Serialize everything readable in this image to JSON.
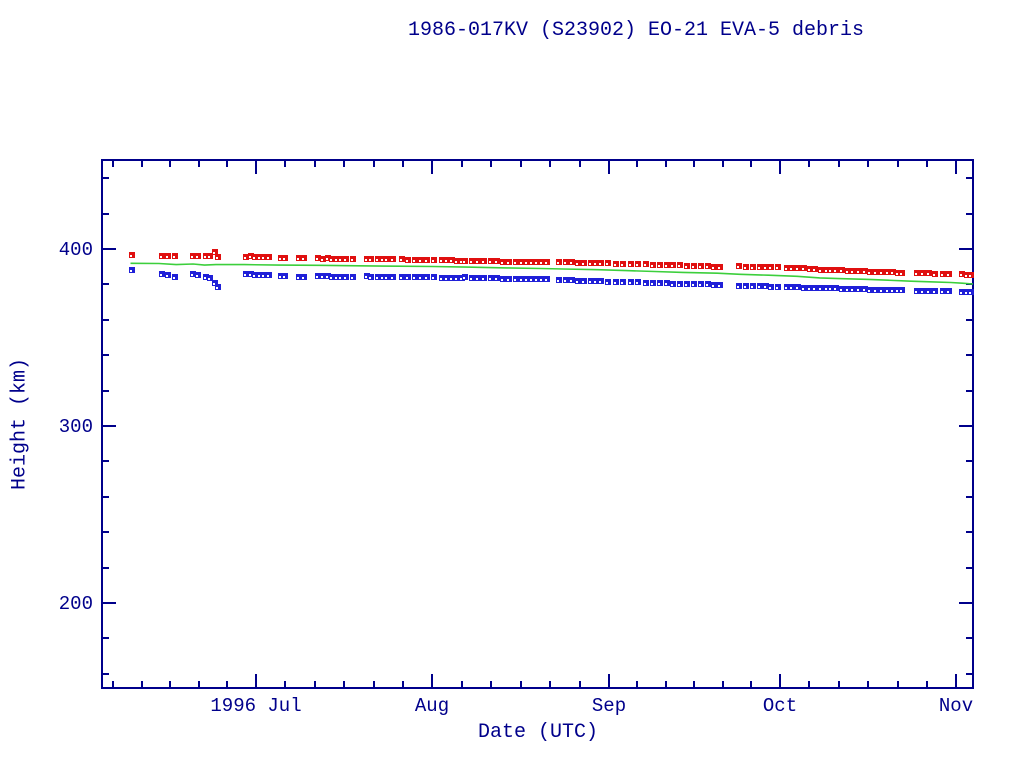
{
  "page": {
    "background": "#ffffff"
  },
  "title": "1986-017KV (S23902) EO-21 EVA-5 debris",
  "colors": {
    "axis_and_text": "#00008b",
    "red_series": "#e01010",
    "blue_series": "#2020d8",
    "green_line": "#3ccf3c",
    "marker_notch": "#ffffff"
  },
  "chart_data": {
    "type": "scatter",
    "title": "1986-017KV (S23902) EO-21 EVA-5 debris",
    "xlabel": "Date (UTC)",
    "ylabel": "Height (km)",
    "x_unit_note": "days since 1996-06-01",
    "xlim": [
      3.0,
      155.9
    ],
    "ylim": [
      152,
      450
    ],
    "grid": "off",
    "legend": "none",
    "y_major_ticks": [
      {
        "value": 200,
        "label": "200"
      },
      {
        "value": 300,
        "label": "300"
      },
      {
        "value": 400,
        "label": "400"
      }
    ],
    "y_minor_step": 20,
    "x_major_ticks": [
      {
        "day": 30,
        "label": "1996 Jul"
      },
      {
        "day": 61,
        "label": "Aug"
      },
      {
        "day": 92,
        "label": "Sep"
      },
      {
        "day": 122,
        "label": "Oct"
      },
      {
        "day": 153,
        "label": "Nov"
      }
    ],
    "x_month_boundaries": [
      0,
      30,
      61,
      92,
      122,
      153,
      184
    ],
    "x_minor_divisions_per_month": 6,
    "series": [
      {
        "name": "red-squares",
        "marker": "square",
        "color": "#e01010"
      },
      {
        "name": "blue-squares",
        "marker": "square",
        "color": "#2020d8"
      },
      {
        "name": "green-line",
        "type": "line",
        "color": "#3ccf3c"
      }
    ],
    "observations_day_redkm_bluekm": [
      [
        8.2,
        396.6,
        388.0
      ],
      [
        13.5,
        396.2,
        385.8
      ],
      [
        14.6,
        396.2,
        385.3
      ],
      [
        15.8,
        395.8,
        384.3
      ],
      [
        19.0,
        396.2,
        385.6
      ],
      [
        19.8,
        396.1,
        385.5
      ],
      [
        21.2,
        395.9,
        383.9
      ],
      [
        22.0,
        395.9,
        383.7
      ],
      [
        22.8,
        398.1,
        380.7
      ],
      [
        23.4,
        395.7,
        378.3
      ],
      [
        28.3,
        395.7,
        385.6
      ],
      [
        29.1,
        395.8,
        385.7
      ],
      [
        29.9,
        395.6,
        385.5
      ],
      [
        30.7,
        395.6,
        385.4
      ],
      [
        31.5,
        395.4,
        385.3
      ],
      [
        32.3,
        395.5,
        385.3
      ],
      [
        34.4,
        394.9,
        384.7
      ],
      [
        35.2,
        394.9,
        384.6
      ],
      [
        37.6,
        395.1,
        384.3
      ],
      [
        38.4,
        395.0,
        384.2
      ],
      [
        41.0,
        394.7,
        384.5
      ],
      [
        41.8,
        394.6,
        384.6
      ],
      [
        42.6,
        394.7,
        384.5
      ],
      [
        43.4,
        394.5,
        384.4
      ],
      [
        44.2,
        394.5,
        384.3
      ],
      [
        45.0,
        394.4,
        384.3
      ],
      [
        45.9,
        394.3,
        384.2
      ],
      [
        47.0,
        394.3,
        384.1
      ],
      [
        49.5,
        394.5,
        384.5
      ],
      [
        50.3,
        394.4,
        384.4
      ],
      [
        51.5,
        394.3,
        384.3
      ],
      [
        52.3,
        394.2,
        384.2
      ],
      [
        53.1,
        394.3,
        384.2
      ],
      [
        54.0,
        394.1,
        384.1
      ],
      [
        55.7,
        394.1,
        384.3
      ],
      [
        56.8,
        394.0,
        384.2
      ],
      [
        57.9,
        393.9,
        384.1
      ],
      [
        59.0,
        393.8,
        384.0
      ],
      [
        60.1,
        393.8,
        383.9
      ],
      [
        61.2,
        393.7,
        383.9
      ],
      [
        62.7,
        393.7,
        383.7
      ],
      [
        63.6,
        393.6,
        383.7
      ],
      [
        64.5,
        393.6,
        383.6
      ],
      [
        65.4,
        393.5,
        383.6
      ],
      [
        66.2,
        393.5,
        383.5
      ],
      [
        66.8,
        393.5,
        383.9
      ],
      [
        67.9,
        393.4,
        383.8
      ],
      [
        69.0,
        393.3,
        383.7
      ],
      [
        70.1,
        393.2,
        383.6
      ],
      [
        71.2,
        393.1,
        383.5
      ],
      [
        72.3,
        393.0,
        383.4
      ],
      [
        73.4,
        392.9,
        383.3
      ],
      [
        74.5,
        392.9,
        383.2
      ],
      [
        75.6,
        392.8,
        383.2
      ],
      [
        76.7,
        392.8,
        383.1
      ],
      [
        77.6,
        392.7,
        383.1
      ],
      [
        78.5,
        392.7,
        383.0
      ],
      [
        79.3,
        392.9,
        382.9
      ],
      [
        80.2,
        392.8,
        382.8
      ],
      [
        81.1,
        392.7,
        382.8
      ],
      [
        83.3,
        392.6,
        382.5
      ],
      [
        84.4,
        392.5,
        382.4
      ],
      [
        85.5,
        392.4,
        382.3
      ],
      [
        86.6,
        392.3,
        382.2
      ],
      [
        87.7,
        392.2,
        382.1
      ],
      [
        88.8,
        392.1,
        382.0
      ],
      [
        89.8,
        392.1,
        381.9
      ],
      [
        90.6,
        392.0,
        381.7
      ],
      [
        91.9,
        391.9,
        381.6
      ],
      [
        93.2,
        391.8,
        381.5
      ],
      [
        94.5,
        391.7,
        381.4
      ],
      [
        95.8,
        391.6,
        381.2
      ],
      [
        97.1,
        391.5,
        381.1
      ],
      [
        98.5,
        391.3,
        380.9
      ],
      [
        99.7,
        391.2,
        380.8
      ],
      [
        100.9,
        391.0,
        380.7
      ],
      [
        102.1,
        390.9,
        380.6
      ],
      [
        103.3,
        390.8,
        380.5
      ],
      [
        104.5,
        390.7,
        380.4
      ],
      [
        105.7,
        390.5,
        380.3
      ],
      [
        106.9,
        390.4,
        380.2
      ],
      [
        108.1,
        390.3,
        380.1
      ],
      [
        109.3,
        390.2,
        380.0
      ],
      [
        110.4,
        390.1,
        379.9
      ],
      [
        111.4,
        390.0,
        379.9
      ],
      [
        114.9,
        390.3,
        379.3
      ],
      [
        116.1,
        390.1,
        379.2
      ],
      [
        117.3,
        390.0,
        379.1
      ],
      [
        118.5,
        389.9,
        379.0
      ],
      [
        119.6,
        389.9,
        378.9
      ],
      [
        120.4,
        389.7,
        378.7
      ],
      [
        121.6,
        389.6,
        378.6
      ],
      [
        123.2,
        389.3,
        378.5
      ],
      [
        124.2,
        389.2,
        378.4
      ],
      [
        125.2,
        389.1,
        378.3
      ],
      [
        126.2,
        389.0,
        378.2
      ],
      [
        127.2,
        388.8,
        378.1
      ],
      [
        128.2,
        388.6,
        378.0
      ],
      [
        129.2,
        388.4,
        377.9
      ],
      [
        130.2,
        388.3,
        377.8
      ],
      [
        130.9,
        388.2,
        377.7
      ],
      [
        131.9,
        388.1,
        377.7
      ],
      [
        132.9,
        387.9,
        377.6
      ],
      [
        133.9,
        387.8,
        377.5
      ],
      [
        134.9,
        387.6,
        377.4
      ],
      [
        135.9,
        387.5,
        377.3
      ],
      [
        136.9,
        387.4,
        377.2
      ],
      [
        137.9,
        387.2,
        377.1
      ],
      [
        138.9,
        387.1,
        377.0
      ],
      [
        139.9,
        387.0,
        376.9
      ],
      [
        140.9,
        386.9,
        376.9
      ],
      [
        141.9,
        386.8,
        376.8
      ],
      [
        142.7,
        386.7,
        376.7
      ],
      [
        143.5,
        386.7,
        376.7
      ],
      [
        146.0,
        386.5,
        376.5
      ],
      [
        147.1,
        386.4,
        376.4
      ],
      [
        148.2,
        386.2,
        376.4
      ],
      [
        149.3,
        386.1,
        376.3
      ],
      [
        150.6,
        386.0,
        376.2
      ],
      [
        151.7,
        385.9,
        376.1
      ],
      [
        153.9,
        385.7,
        375.9
      ],
      [
        154.8,
        385.5,
        375.7
      ],
      [
        155.6,
        385.3,
        375.6
      ]
    ],
    "green_line_day_km": [
      [
        8.0,
        391.9
      ],
      [
        13,
        391.8
      ],
      [
        16,
        391.2
      ],
      [
        19,
        391.5
      ],
      [
        21,
        390.9
      ],
      [
        23,
        391.2
      ],
      [
        28,
        391.2
      ],
      [
        34,
        390.9
      ],
      [
        41,
        390.8
      ],
      [
        48,
        390.5
      ],
      [
        55,
        390.3
      ],
      [
        61,
        390.1
      ],
      [
        67,
        389.8
      ],
      [
        74,
        389.3
      ],
      [
        80,
        389.0
      ],
      [
        84,
        388.7
      ],
      [
        90,
        388.3
      ],
      [
        95,
        387.8
      ],
      [
        100,
        387.3
      ],
      [
        105,
        386.8
      ],
      [
        111,
        386.3
      ],
      [
        115,
        385.7
      ],
      [
        120,
        385.2
      ],
      [
        125,
        384.6
      ],
      [
        129,
        383.7
      ],
      [
        133,
        383.2
      ],
      [
        137,
        382.9
      ],
      [
        141,
        382.4
      ],
      [
        145,
        381.8
      ],
      [
        149,
        381.4
      ],
      [
        152,
        381.1
      ],
      [
        154,
        380.7
      ],
      [
        155.9,
        380.2
      ]
    ]
  }
}
